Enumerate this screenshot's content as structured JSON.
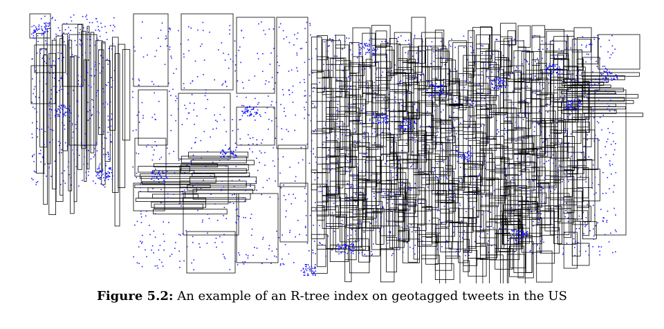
{
  "caption": {
    "label": "Figure 5.2:",
    "text": " An example of an R-tree index on geotagged tweets in the US"
  },
  "colors": {
    "rect_stroke": "#000000",
    "tweet_points": "#1a1aff",
    "background": "#ffffff"
  }
}
